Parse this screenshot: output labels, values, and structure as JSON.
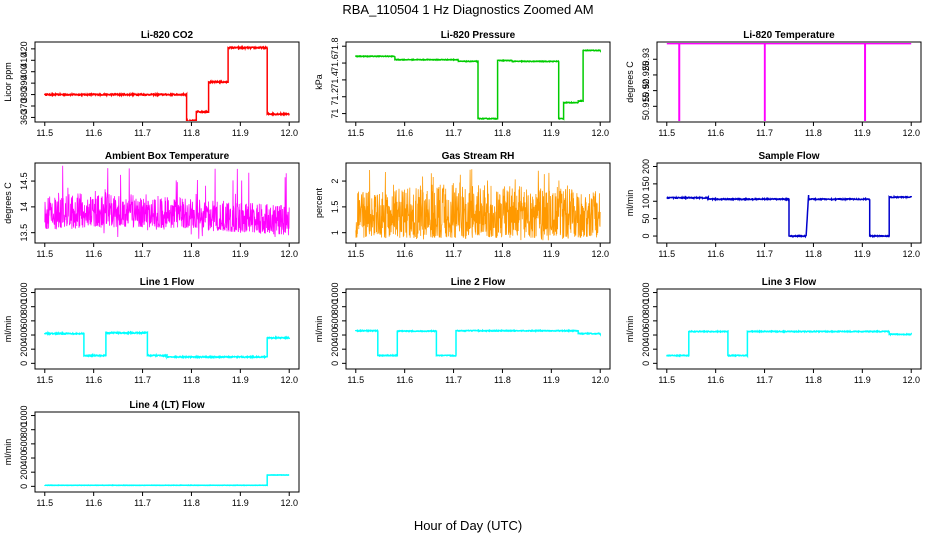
{
  "title": "RBA_110504  1 Hz Diagnostics Zoomed AM",
  "xlabel": "Hour of Day (UTC)",
  "chart_data": [
    {
      "type": "line",
      "title": "Li-820 CO2",
      "ylabel": "Licor ppm",
      "color": "#ff0000",
      "xlim": [
        11.5,
        12.0
      ],
      "xticks": [
        "11.5",
        "11.6",
        "11.7",
        "11.8",
        "11.9",
        "12.0"
      ],
      "ylim": [
        356,
        426
      ],
      "yticks": [
        360,
        370,
        380,
        390,
        400,
        410,
        420
      ],
      "noise": 0.6,
      "x": [
        11.5,
        11.79,
        11.79,
        11.81,
        11.81,
        11.835,
        11.835,
        11.875,
        11.875,
        11.955,
        11.955,
        12.0
      ],
      "y": [
        380,
        380,
        357,
        357,
        365,
        365,
        391,
        391,
        421,
        421,
        363,
        363
      ]
    },
    {
      "type": "line",
      "title": "Li-820 Pressure",
      "ylabel": "kPa",
      "color": "#00cc00",
      "xlim": [
        11.5,
        12.0
      ],
      "xticks": [
        "11.5",
        "11.6",
        "11.7",
        "11.8",
        "11.9",
        "12.0"
      ],
      "ylim": [
        70.9,
        71.85
      ],
      "yticks": [
        71.0,
        71.2,
        71.4,
        71.6,
        71.8
      ],
      "noise": 0.004,
      "x": [
        11.5,
        11.58,
        11.58,
        11.71,
        11.71,
        11.75,
        11.75,
        11.79,
        11.79,
        11.82,
        11.82,
        11.915,
        11.915,
        11.925,
        11.925,
        11.955,
        11.955,
        11.965,
        11.965,
        12.0
      ],
      "y": [
        71.68,
        71.68,
        71.64,
        71.64,
        71.62,
        71.62,
        70.94,
        70.94,
        71.63,
        71.63,
        71.62,
        71.62,
        70.94,
        70.94,
        71.13,
        71.13,
        71.15,
        71.15,
        71.75,
        71.75
      ]
    },
    {
      "type": "line",
      "title": "Li-820 Temperature",
      "ylabel": "degrees C",
      "color": "#ff00ff",
      "xlim": [
        11.5,
        12.0
      ],
      "xticks": [
        "11.5",
        "11.6",
        "11.7",
        "11.8",
        "11.9",
        "12.0"
      ],
      "ylim": [
        50.91,
        50.9355
      ],
      "yticks": [
        50.915,
        50.92,
        50.925,
        50.93
      ],
      "noise": 0,
      "x": [
        11.5,
        11.525,
        11.525,
        11.526,
        11.526,
        11.7,
        11.7,
        11.701,
        11.701,
        11.905,
        11.905,
        11.906,
        11.906,
        12.0
      ],
      "y": [
        50.935,
        50.935,
        50.91,
        50.91,
        50.935,
        50.935,
        50.91,
        50.91,
        50.935,
        50.935,
        50.91,
        50.91,
        50.935,
        50.935
      ]
    },
    {
      "type": "line",
      "title": "Ambient Box Temperature",
      "ylabel": "degrees C",
      "color": "#ff00ff",
      "xlim": [
        11.5,
        12.0
      ],
      "xticks": [
        "11.5",
        "11.6",
        "11.7",
        "11.8",
        "11.9",
        "12.0"
      ],
      "ylim": [
        13.3,
        14.85
      ],
      "yticks": [
        13.5,
        14.0,
        14.5
      ],
      "noise": 0,
      "band": {
        "x": [
          11.5,
          11.6,
          11.7,
          11.8,
          11.9,
          12.0
        ],
        "low": [
          13.55,
          13.6,
          13.6,
          13.58,
          13.5,
          13.45
        ],
        "high": [
          14.2,
          14.3,
          14.25,
          14.15,
          14.1,
          14.05
        ],
        "spikes_high": 14.8,
        "spikes_low": 13.35
      },
      "x": [],
      "y": []
    },
    {
      "type": "line",
      "title": "Gas Stream RH",
      "ylabel": "percent",
      "color": "#ff9900",
      "xlim": [
        11.5,
        12.0
      ],
      "xticks": [
        "11.5",
        "11.6",
        "11.7",
        "11.8",
        "11.9",
        "12.0"
      ],
      "ylim": [
        0.8,
        2.35
      ],
      "yticks": [
        1.0,
        1.5,
        2.0
      ],
      "noise": 0,
      "band": {
        "x": [
          11.5,
          11.6,
          11.7,
          11.8,
          11.9,
          12.0
        ],
        "low": [
          0.9,
          0.9,
          0.9,
          0.9,
          0.9,
          0.9
        ],
        "high": [
          1.8,
          1.9,
          2.0,
          1.9,
          1.9,
          1.8
        ],
        "spikes_high": 2.25,
        "spikes_low": 0.85
      },
      "x": [],
      "y": []
    },
    {
      "type": "line",
      "title": "Sample Flow",
      "ylabel": "ml/min",
      "color": "#0000cc",
      "xlim": [
        11.5,
        12.0
      ],
      "xticks": [
        "11.5",
        "11.6",
        "11.7",
        "11.8",
        "11.9",
        "12.0"
      ],
      "ylim": [
        -20,
        210
      ],
      "yticks": [
        0,
        50,
        100,
        150,
        200
      ],
      "noise": 1.5,
      "x": [
        11.5,
        11.585,
        11.585,
        11.75,
        11.75,
        11.785,
        11.785,
        11.79,
        11.79,
        11.915,
        11.915,
        11.955,
        11.955,
        12.0
      ],
      "y": [
        110,
        110,
        106,
        106,
        0,
        0,
        0,
        118,
        106,
        106,
        0,
        0,
        112,
        112
      ]
    },
    {
      "type": "line",
      "title": "Line 1 Flow",
      "ylabel": "ml/min",
      "color": "#00ffff",
      "xlim": [
        11.5,
        12.0
      ],
      "xticks": [
        "11.5",
        "11.6",
        "11.7",
        "11.8",
        "11.9",
        "12.0"
      ],
      "ylim": [
        -80,
        1050
      ],
      "yticks": [
        0,
        200,
        400,
        600,
        800,
        1000
      ],
      "noise": 8,
      "x": [
        11.5,
        11.58,
        11.58,
        11.625,
        11.625,
        11.71,
        11.71,
        11.75,
        11.75,
        11.955,
        11.955,
        12.0
      ],
      "y": [
        420,
        420,
        110,
        110,
        430,
        430,
        110,
        110,
        90,
        90,
        360,
        360
      ]
    },
    {
      "type": "line",
      "title": "Line 2 Flow",
      "ylabel": "ml/min",
      "color": "#00ffff",
      "xlim": [
        11.5,
        12.0
      ],
      "xticks": [
        "11.5",
        "11.6",
        "11.7",
        "11.8",
        "11.9",
        "12.0"
      ],
      "ylim": [
        -80,
        1050
      ],
      "yticks": [
        0,
        200,
        400,
        600,
        800,
        1000
      ],
      "noise": 6,
      "x": [
        11.5,
        11.545,
        11.545,
        11.585,
        11.585,
        11.665,
        11.665,
        11.705,
        11.705,
        11.955,
        11.955,
        12.0
      ],
      "y": [
        460,
        460,
        110,
        110,
        455,
        455,
        110,
        110,
        460,
        460,
        420,
        420
      ]
    },
    {
      "type": "line",
      "title": "Line 3 Flow",
      "ylabel": "ml/min",
      "color": "#00ffff",
      "xlim": [
        11.5,
        12.0
      ],
      "xticks": [
        "11.5",
        "11.6",
        "11.7",
        "11.8",
        "11.9",
        "12.0"
      ],
      "ylim": [
        -80,
        1050
      ],
      "yticks": [
        0,
        200,
        400,
        600,
        800,
        1000
      ],
      "noise": 6,
      "x": [
        11.5,
        11.545,
        11.545,
        11.625,
        11.625,
        11.665,
        11.665,
        11.955,
        11.955,
        12.0
      ],
      "y": [
        110,
        110,
        450,
        450,
        110,
        110,
        450,
        450,
        410,
        410
      ]
    },
    {
      "type": "line",
      "title": "Line 4 (LT) Flow",
      "ylabel": "ml/min",
      "color": "#00ffff",
      "xlim": [
        11.5,
        12.0
      ],
      "xticks": [
        "11.5",
        "11.6",
        "11.7",
        "11.8",
        "11.9",
        "12.0"
      ],
      "ylim": [
        -80,
        1050
      ],
      "yticks": [
        0,
        200,
        400,
        600,
        800,
        1000
      ],
      "noise": 2,
      "x": [
        11.5,
        11.955,
        11.955,
        12.0
      ],
      "y": [
        15,
        15,
        160,
        160
      ]
    }
  ]
}
